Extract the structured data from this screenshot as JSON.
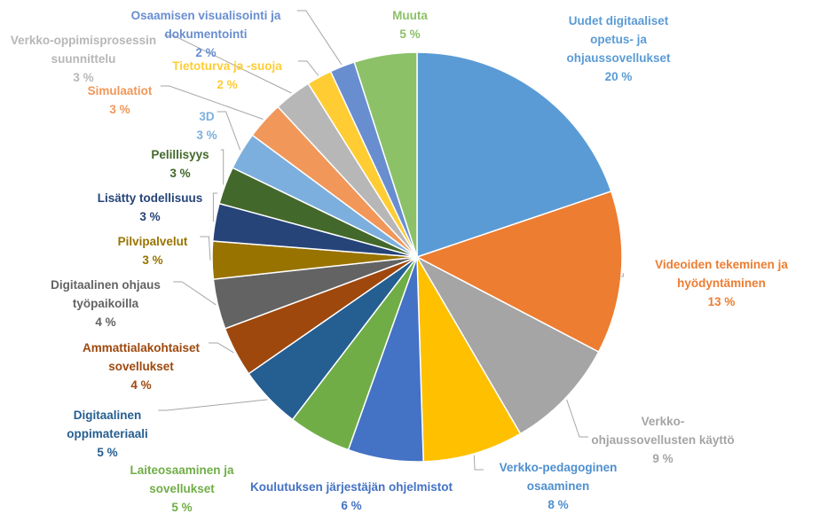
{
  "chart_data": {
    "type": "pie",
    "title": "",
    "slices": [
      {
        "label": [
          "Uudet digitaaliset",
          "opetus- ja",
          "ohjaussovellukset"
        ],
        "value": 20,
        "value_label": "20 %",
        "color": "#5b9bd5",
        "label_color": "#5b9bd5"
      },
      {
        "label": [
          "Videoiden tekeminen ja",
          "hyödyntäminen"
        ],
        "value": 13,
        "value_label": "13 %",
        "color": "#ed7d31",
        "label_color": "#ed7d31"
      },
      {
        "label": [
          "Verkko-",
          "ohjaussovellusten käyttö"
        ],
        "value": 9,
        "value_label": "9 %",
        "color": "#a5a5a5",
        "label_color": "#a5a5a5"
      },
      {
        "label": [
          "Verkko-pedagoginen",
          "osaaminen"
        ],
        "value": 8,
        "value_label": "8 %",
        "color": "#ffc000",
        "label_color": "#4f8fd0"
      },
      {
        "label": [
          "Koulutuksen järjestäjän ohjelmistot"
        ],
        "value": 6,
        "value_label": "6 %",
        "color": "#4472c4",
        "label_color": "#4472c4"
      },
      {
        "label": [
          "Laiteosaaminen ja",
          "sovellukset"
        ],
        "value": 5,
        "value_label": "5 %",
        "color": "#70ad47",
        "label_color": "#70ad47"
      },
      {
        "label": [
          "Digitaalinen",
          "oppimateriaali"
        ],
        "value": 5,
        "value_label": "5 %",
        "color": "#255e91",
        "label_color": "#255e91"
      },
      {
        "label": [
          "Ammattialakohtaiset",
          "sovellukset"
        ],
        "value": 4,
        "value_label": "4 %",
        "color": "#9e480e",
        "label_color": "#9e480e"
      },
      {
        "label": [
          "Digitaalinen ohjaus",
          "työpaikoilla"
        ],
        "value": 4,
        "value_label": "4 %",
        "color": "#636363",
        "label_color": "#636363"
      },
      {
        "label": [
          "Pilvipalvelut"
        ],
        "value": 3,
        "value_label": "3 %",
        "color": "#997300",
        "label_color": "#997300"
      },
      {
        "label": [
          "Lisätty todellisuus"
        ],
        "value": 3,
        "value_label": "3 %",
        "color": "#264478",
        "label_color": "#264478"
      },
      {
        "label": [
          "Pelillisyys"
        ],
        "value": 3,
        "value_label": "3 %",
        "color": "#43682b",
        "label_color": "#43682b"
      },
      {
        "label": [
          "3D"
        ],
        "value": 3,
        "value_label": "3 %",
        "color": "#7cafdd",
        "label_color": "#7cafdd"
      },
      {
        "label": [
          "Simulaatiot"
        ],
        "value": 3,
        "value_label": "3 %",
        "color": "#f1975a",
        "label_color": "#f1975a"
      },
      {
        "label": [
          "Verkko-oppimisprosessin",
          "suunnittelu"
        ],
        "value": 3,
        "value_label": "3 %",
        "color": "#b7b7b7",
        "label_color": "#b7b7b7"
      },
      {
        "label": [
          "Tietoturva ja -suoja"
        ],
        "value": 2,
        "value_label": "2 %",
        "color": "#ffcd33",
        "label_color": "#ffcd33"
      },
      {
        "label": [
          "Osaamisen visualisointi ja",
          "dokumentointi"
        ],
        "value": 2,
        "value_label": "2 %",
        "color": "#698ed0",
        "label_color": "#698ed0"
      },
      {
        "label": [
          "Muuta"
        ],
        "value": 5,
        "value_label": "5 %",
        "color": "#8cc168",
        "label_color": "#8cc168"
      }
    ]
  }
}
